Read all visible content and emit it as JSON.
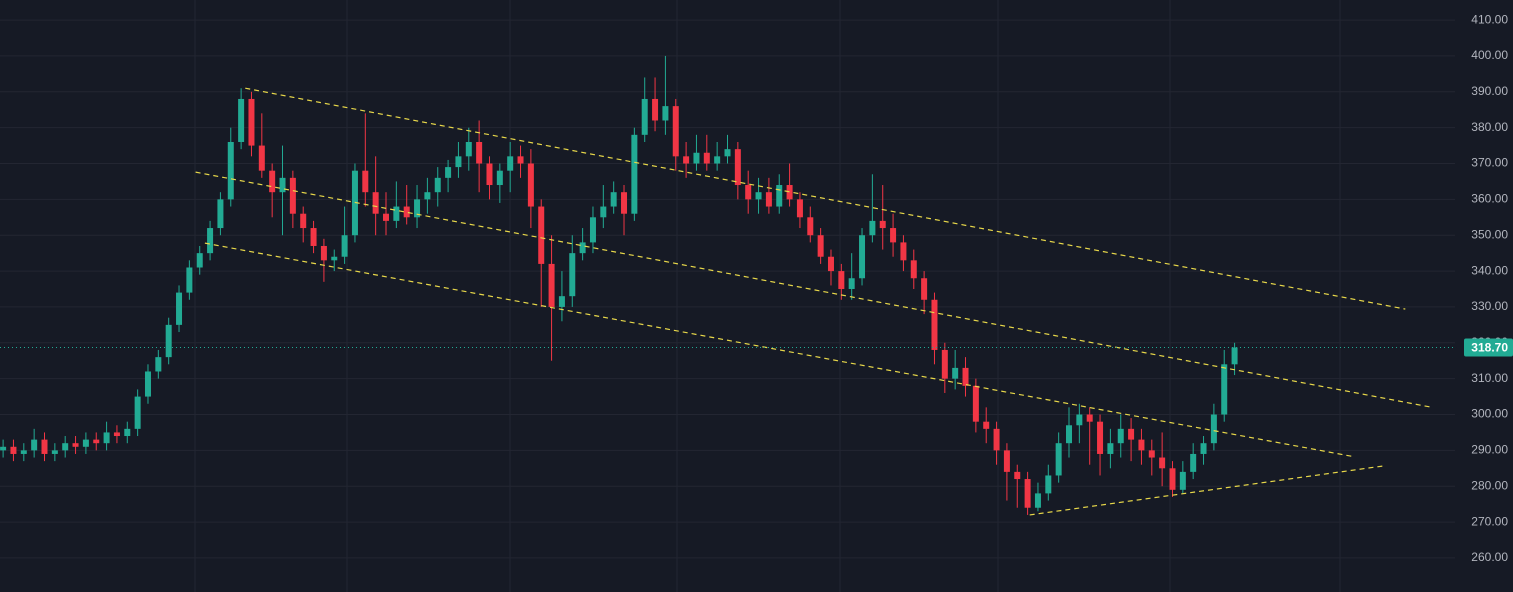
{
  "chart_data": {
    "type": "candlestick",
    "up_color": "#22ab94",
    "down_color": "#f23645",
    "grid": true,
    "xlim": [
      -0.3,
      140.3
    ],
    "ylim": [
      250.5,
      415.6
    ],
    "yticks": [
      {
        "value": 260,
        "label": "260.00"
      },
      {
        "value": 270,
        "label": "270.00"
      },
      {
        "value": 280,
        "label": "280.00"
      },
      {
        "value": 290,
        "label": "290.00"
      },
      {
        "value": 300,
        "label": "300.00"
      },
      {
        "value": 310,
        "label": "310.00"
      },
      {
        "value": 320,
        "label": "320.00"
      },
      {
        "value": 330,
        "label": "330.00"
      },
      {
        "value": 340,
        "label": "340.00"
      },
      {
        "value": 350,
        "label": "350.00"
      },
      {
        "value": 360,
        "label": "360.00"
      },
      {
        "value": 370,
        "label": "370.00"
      },
      {
        "value": 380,
        "label": "380.00"
      },
      {
        "value": 390,
        "label": "390.00"
      },
      {
        "value": 400,
        "label": "400.00"
      },
      {
        "value": 410,
        "label": "410.00"
      }
    ],
    "last_price": {
      "value": 318.7,
      "label": "318.70"
    },
    "open": [
      290,
      291,
      289,
      290,
      293,
      289,
      290,
      292,
      291,
      293,
      292,
      295,
      294,
      296,
      305,
      312,
      316,
      325,
      334,
      341,
      345,
      352,
      360,
      376,
      388,
      375,
      368,
      362,
      366,
      356,
      352,
      347,
      343,
      344,
      350,
      368,
      362,
      356,
      354,
      358,
      355,
      360,
      362,
      366,
      369,
      372,
      376,
      370,
      364,
      368,
      372,
      370,
      358,
      342,
      330,
      333,
      345,
      348,
      355,
      358,
      362,
      356,
      378,
      388,
      382,
      386,
      372,
      370,
      373,
      370,
      372,
      374,
      364,
      360,
      362,
      358,
      364,
      360,
      355,
      350,
      344,
      340,
      335,
      338,
      350,
      354,
      352,
      348,
      343,
      338,
      332,
      318,
      310,
      313,
      308,
      298,
      296,
      290,
      284,
      282,
      274,
      278,
      283,
      292,
      297,
      300,
      298,
      289,
      292,
      296,
      293,
      290,
      288,
      285,
      279,
      284,
      289,
      292,
      300,
      314
    ],
    "high": [
      293,
      293,
      292,
      296,
      295,
      292,
      294,
      294,
      295,
      295,
      298,
      297,
      298,
      307,
      314,
      318,
      327,
      336,
      343,
      347,
      354,
      362,
      380,
      391,
      390,
      384,
      370,
      375,
      368,
      358,
      354,
      349,
      346,
      358,
      370,
      384,
      372,
      362,
      365,
      364,
      364,
      366,
      369,
      371,
      376,
      380,
      382,
      372,
      370,
      376,
      375,
      374,
      360,
      350,
      340,
      350,
      352,
      358,
      364,
      365,
      364,
      380,
      394,
      394,
      400,
      388,
      376,
      378,
      378,
      376,
      378,
      376,
      368,
      366,
      366,
      367,
      370,
      362,
      358,
      352,
      346,
      342,
      345,
      352,
      367,
      364,
      356,
      350,
      346,
      340,
      334,
      320,
      318,
      316,
      310,
      302,
      298,
      292,
      286,
      284,
      281,
      286,
      295,
      302,
      303,
      302,
      300,
      296,
      300,
      299,
      296,
      293,
      295,
      287,
      287,
      292,
      294,
      303,
      318,
      320
    ],
    "low": [
      288,
      287,
      287,
      288,
      287,
      287,
      288,
      289,
      289,
      290,
      290,
      292,
      292,
      294,
      303,
      310,
      314,
      323,
      332,
      339,
      343,
      350,
      358,
      374,
      372,
      366,
      355,
      350,
      352,
      348,
      345,
      337,
      340,
      342,
      348,
      358,
      350,
      350,
      352,
      353,
      352,
      356,
      358,
      362,
      366,
      368,
      362,
      360,
      359,
      362,
      366,
      352,
      330,
      315,
      326,
      330,
      343,
      345,
      352,
      356,
      350,
      354,
      376,
      379,
      378,
      368,
      366,
      368,
      368,
      368,
      370,
      360,
      356,
      356,
      356,
      356,
      358,
      352,
      348,
      342,
      336,
      332,
      332,
      336,
      348,
      346,
      344,
      340,
      335,
      328,
      314,
      306,
      307,
      305,
      295,
      292,
      286,
      276,
      274,
      272,
      273,
      276,
      281,
      288,
      292,
      286,
      283,
      285,
      288,
      287,
      286,
      283,
      280,
      277,
      278,
      282,
      286,
      290,
      298,
      311
    ],
    "close": [
      291,
      289,
      290,
      293,
      289,
      290,
      292,
      291,
      293,
      292,
      295,
      294,
      296,
      305,
      312,
      316,
      325,
      334,
      341,
      345,
      352,
      360,
      376,
      388,
      375,
      368,
      362,
      366,
      356,
      352,
      347,
      343,
      344,
      350,
      368,
      362,
      356,
      354,
      358,
      355,
      360,
      362,
      366,
      369,
      372,
      376,
      370,
      364,
      368,
      372,
      370,
      358,
      342,
      330,
      333,
      345,
      348,
      355,
      358,
      362,
      356,
      378,
      388,
      382,
      386,
      372,
      370,
      373,
      370,
      372,
      374,
      364,
      360,
      362,
      358,
      364,
      360,
      355,
      350,
      344,
      340,
      335,
      338,
      350,
      354,
      352,
      348,
      343,
      338,
      332,
      318,
      310,
      313,
      308,
      298,
      296,
      290,
      284,
      282,
      274,
      278,
      283,
      292,
      297,
      300,
      298,
      289,
      292,
      296,
      293,
      290,
      288,
      285,
      279,
      284,
      289,
      292,
      300,
      314,
      318.7
    ],
    "trend_lines": [
      {
        "x": [
          23.4,
          135.5
        ],
        "y": [
          391,
          329.4
        ]
      },
      {
        "x": [
          18.6,
          137.9
        ],
        "y": [
          367.6,
          302.1
        ]
      },
      {
        "x": [
          19.5,
          130.6
        ],
        "y": [
          347.8,
          288.2
        ]
      },
      {
        "x": [
          99.2,
          133.5
        ],
        "y": [
          272.0,
          285.7
        ]
      }
    ]
  }
}
